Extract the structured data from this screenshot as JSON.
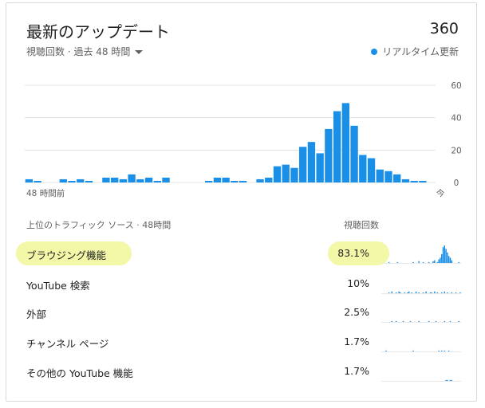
{
  "header": {
    "title": "最新のアップデート",
    "total_views": "360",
    "subtitle": "視聴回数 · 過去 48 時間",
    "realtime_label": "リアルタイム更新",
    "accent_color": "#1a8fe8"
  },
  "chart_data": {
    "type": "bar",
    "title": "",
    "xlabel": "",
    "ylabel": "",
    "ylim": [
      0,
      60
    ],
    "yticks": [
      "60",
      "40",
      "20",
      "0"
    ],
    "x_start_label": "48 時間前",
    "x_end_label": "今",
    "grid": true,
    "series": [
      {
        "values": [
          2,
          1,
          0,
          0,
          2,
          1,
          2,
          1,
          0,
          3,
          3,
          2,
          5,
          2,
          3,
          1,
          3,
          0,
          0,
          0,
          0,
          1,
          3,
          3,
          1,
          1,
          0,
          2,
          3,
          10,
          11,
          9,
          22,
          25,
          18,
          33,
          44,
          49,
          35,
          17,
          15,
          8,
          7,
          5,
          2,
          1,
          1,
          0
        ]
      }
    ]
  },
  "traffic": {
    "section_label": "上位のトラフィック ソース · 48時間",
    "views_label": "視聴回数",
    "highlight_color": "#f3f8a8",
    "rows": [
      {
        "name": "ブラウジング機能",
        "pct": "83.1%",
        "spark": [
          0,
          0,
          0,
          0,
          0,
          1,
          0,
          0,
          0,
          0,
          0,
          1,
          0,
          0,
          0,
          0,
          0,
          0,
          0,
          0,
          0,
          0,
          1,
          0,
          0,
          0,
          2,
          0,
          0,
          1,
          0,
          0,
          0,
          1,
          0,
          0,
          2,
          3,
          0,
          1,
          4,
          6,
          10,
          18,
          20,
          16,
          12,
          8,
          6,
          3,
          0,
          0,
          0,
          0,
          1,
          0
        ]
      },
      {
        "name": "YouTube 検索",
        "pct": "10%",
        "spark": [
          0,
          0,
          0,
          0,
          0,
          1,
          0,
          2,
          0,
          0,
          1,
          0,
          2,
          1,
          0,
          0,
          1,
          0,
          1,
          2,
          0,
          1,
          0,
          0,
          2,
          0,
          1,
          0,
          0,
          1,
          0,
          2,
          0,
          0,
          1,
          1,
          0,
          2,
          0,
          1,
          0,
          0,
          1,
          0,
          2,
          0,
          1,
          0,
          0,
          1,
          0,
          0,
          1,
          0,
          0,
          1
        ]
      },
      {
        "name": "外部",
        "pct": "2.5%",
        "spark": [
          0,
          0,
          0,
          0,
          0,
          0,
          0,
          1,
          0,
          0,
          1,
          0,
          0,
          0,
          0,
          1,
          0,
          0,
          0,
          0,
          1,
          0,
          0,
          0,
          0,
          0,
          1,
          0,
          0,
          0,
          0,
          0,
          0,
          1,
          0,
          0,
          0,
          0,
          1,
          0,
          0,
          0,
          0,
          0,
          1,
          0,
          0,
          0,
          1,
          0,
          0,
          0,
          0,
          0,
          1,
          0
        ]
      },
      {
        "name": "チャンネル ページ",
        "pct": "1.7%",
        "spark": [
          0,
          0,
          0,
          1,
          0,
          0,
          0,
          0,
          0,
          0,
          0,
          0,
          0,
          0,
          0,
          0,
          0,
          0,
          0,
          0,
          0,
          0,
          1,
          0,
          0,
          0,
          0,
          0,
          0,
          0,
          0,
          0,
          0,
          0,
          0,
          0,
          0,
          0,
          0,
          0,
          1,
          0,
          1,
          0,
          1,
          0,
          0,
          1,
          0,
          0,
          0,
          0,
          0,
          0,
          0,
          0
        ]
      },
      {
        "name": "その他の YouTube 機能",
        "pct": "1.7%",
        "spark": [
          0,
          0,
          0,
          0,
          0,
          0,
          0,
          0,
          0,
          0,
          0,
          0,
          0,
          0,
          0,
          0,
          0,
          0,
          0,
          0,
          0,
          0,
          0,
          0,
          0,
          0,
          0,
          0,
          0,
          0,
          0,
          0,
          0,
          0,
          0,
          0,
          0,
          0,
          0,
          0,
          0,
          0,
          0,
          0,
          0,
          1,
          1,
          0,
          1,
          1,
          0,
          0,
          0,
          0,
          0,
          0
        ]
      }
    ]
  }
}
